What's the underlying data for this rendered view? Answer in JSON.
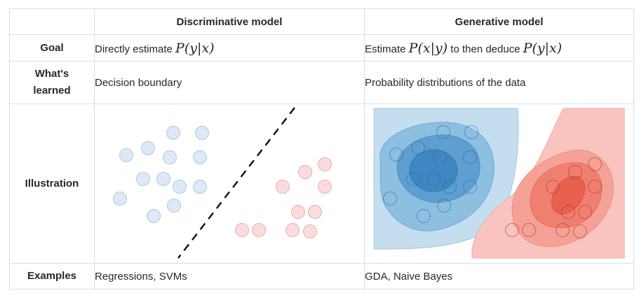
{
  "table": {
    "headers": {
      "corner": "",
      "discriminative": "Discriminative model",
      "generative": "Generative model"
    },
    "rows": {
      "goal": {
        "label": "Goal",
        "discriminative": {
          "prefix": "Directly estimate ",
          "math": "P(y|x)"
        },
        "generative": {
          "prefix": "Estimate ",
          "math1": "P(x|y)",
          "middle": " to then deduce ",
          "math2": "P(y|x)"
        }
      },
      "learned": {
        "label_line1": "What's",
        "label_line2": "learned",
        "discriminative": "Decision boundary",
        "generative": "Probability distributions of the data"
      },
      "illustration": {
        "label": "Illustration"
      },
      "examples": {
        "label": "Examples",
        "discriminative": "Regressions, SVMs",
        "generative": "GDA, Naive Bayes"
      }
    }
  },
  "colors": {
    "border": "#d8dee4",
    "blue_point_fill": "#dde9f4",
    "blue_point_stroke": "#b9cfe3",
    "red_point_fill": "#fbdcdc",
    "red_point_stroke": "#eeb7b7",
    "blue_levels": [
      "#c4ddef",
      "#8dbfe0",
      "#5d9fd0",
      "#3f87c2"
    ],
    "red_levels": [
      "#f9c4c0",
      "#f4a296",
      "#ef7f70",
      "#e9604f"
    ]
  }
}
